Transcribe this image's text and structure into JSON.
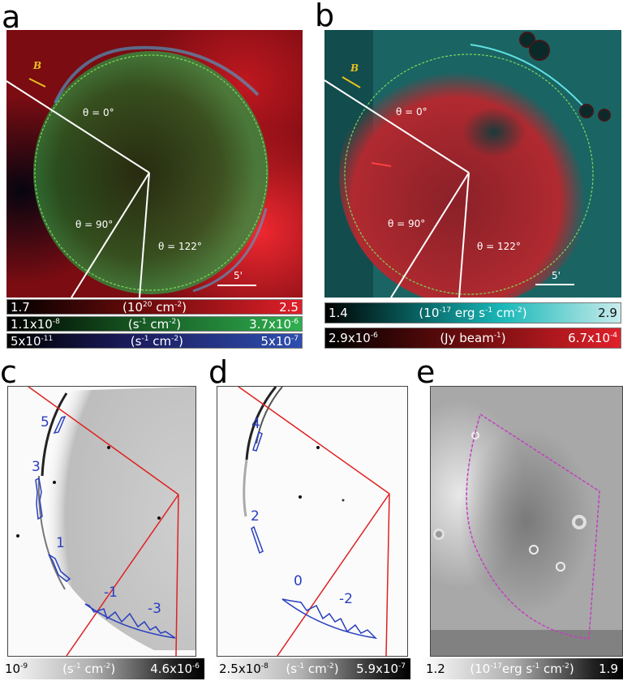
{
  "figure": {
    "panels": {
      "a": {
        "label": "a",
        "angles": [
          "θ = 0°",
          "θ = 90°",
          "θ = 122°"
        ],
        "field_label": "B",
        "scale_bar": "5'",
        "colorbars": [
          {
            "min": "1.7",
            "unit": "(10<sup>20</sup> cm<sup>-2</sup>)",
            "max": "2.5",
            "color": "#e0202a"
          },
          {
            "min": "1.1x10<sup>-8</sup>",
            "unit": "(s<sup>-1</sup> cm<sup>-2</sup>)",
            "max": "3.7x10<sup>-6</sup>",
            "color": "#2fb050"
          },
          {
            "min": "5x10<sup>-11</sup>",
            "unit": "(s<sup>-1</sup> cm<sup>-2</sup>)",
            "max": "5x10<sup>-7</sup>",
            "color": "#2f4fb0"
          }
        ]
      },
      "b": {
        "label": "b",
        "angles": [
          "θ = 0°",
          "θ = 90°",
          "θ = 122°"
        ],
        "field_label": "B",
        "scale_bar": "5'",
        "colorbars": [
          {
            "min": "1.4",
            "unit": "(10<sup>-17</sup> erg s<sup>-1</sup> cm<sup>-2</sup>)",
            "max": "2.9",
            "color": "#a8dcd8"
          },
          {
            "min": "2.9x10<sup>-6</sup>",
            "unit": "(Jy beam<sup>-1</sup>)",
            "max": "6.7x10<sup>-4</sup>",
            "color": "#e0202a"
          }
        ]
      },
      "c": {
        "label": "c",
        "region_labels": [
          "5",
          "3",
          "1",
          "-1",
          "-3"
        ],
        "colorbar": {
          "min": "10<sup>-9</sup>",
          "unit": "(s<sup>-1</sup> cm<sup>-2</sup>)",
          "max": "4.6x10<sup>-6</sup>"
        }
      },
      "d": {
        "label": "d",
        "region_labels": [
          "4",
          "2",
          "0",
          "-2"
        ],
        "colorbar": {
          "min": "2.5x10<sup>-8</sup>",
          "unit": "(s<sup>-1</sup> cm<sup>-2</sup>)",
          "max": "5.9x10<sup>-7</sup>"
        }
      },
      "e": {
        "label": "e",
        "colorbar": {
          "min": "1.2",
          "unit": "(10<sup>-17</sup>erg s<sup>-1</sup> cm<sup>-2</sup>)",
          "max": "1.9"
        }
      }
    },
    "colors": {
      "sector_lines_ab": "#ffffff",
      "circle_ab": "#7ddc5a",
      "field_arrow": "#e8c020",
      "sector_lines_cd": "#e02020",
      "regions_cd": "#2a3fbf",
      "sector_e": "#c040c0"
    }
  }
}
